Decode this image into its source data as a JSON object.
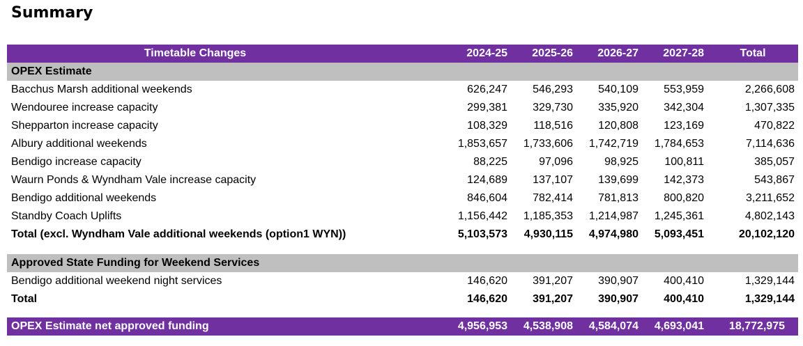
{
  "page_title": "Summary",
  "header": {
    "title": "Timetable Changes",
    "years": [
      "2024-25",
      "2025-26",
      "2026-27",
      "2027-28",
      "Total"
    ]
  },
  "opex": {
    "section_label": "OPEX Estimate",
    "rows": [
      {
        "label": "Bacchus Marsh additional weekends",
        "values": [
          "626,247",
          "546,293",
          "540,109",
          "553,959",
          "2,266,608"
        ]
      },
      {
        "label": "Wendouree increase capacity",
        "values": [
          "299,381",
          "329,730",
          "335,920",
          "342,304",
          "1,307,335"
        ]
      },
      {
        "label": "Shepparton increase capacity",
        "values": [
          "108,329",
          "118,516",
          "120,808",
          "123,169",
          "470,822"
        ]
      },
      {
        "label": "Albury additional weekends",
        "values": [
          "1,853,657",
          "1,733,606",
          "1,742,719",
          "1,784,653",
          "7,114,636"
        ]
      },
      {
        "label": "Bendigo increase capacity",
        "values": [
          "88,225",
          "97,096",
          "98,925",
          "100,811",
          "385,057"
        ]
      },
      {
        "label": "Waurn Ponds & Wyndham Vale increase capacity",
        "values": [
          "124,689",
          "137,107",
          "139,699",
          "142,373",
          "543,867"
        ]
      },
      {
        "label": "Bendigo additional weekends",
        "values": [
          "846,604",
          "782,414",
          "781,813",
          "800,820",
          "3,211,652"
        ]
      },
      {
        "label": "Standby Coach Uplifts",
        "values": [
          "1,156,442",
          "1,185,353",
          "1,214,987",
          "1,245,361",
          "4,802,143"
        ]
      }
    ],
    "total": {
      "label": "Total (excl. Wyndham Vale additional weekends (option1 WYN))",
      "values": [
        "5,103,573",
        "4,930,115",
        "4,974,980",
        "5,093,451",
        "20,102,120"
      ]
    }
  },
  "funding": {
    "section_label": "Approved State Funding for Weekend Services",
    "rows": [
      {
        "label": "Bendigo additional weekend night services",
        "values": [
          "146,620",
          "391,207",
          "390,907",
          "400,410",
          "1,329,144"
        ]
      }
    ],
    "total": {
      "label": "Total",
      "values": [
        "146,620",
        "391,207",
        "390,907",
        "400,410",
        "1,329,144"
      ]
    }
  },
  "net": {
    "label": "OPEX Estimate net approved funding",
    "values": [
      "4,956,953",
      "4,538,908",
      "4,584,074",
      "4,693,041",
      "18,772,975"
    ]
  },
  "colors": {
    "header_bg": "#7030a0",
    "section_bg": "#bfbfbf",
    "header_text": "#ffffff"
  }
}
